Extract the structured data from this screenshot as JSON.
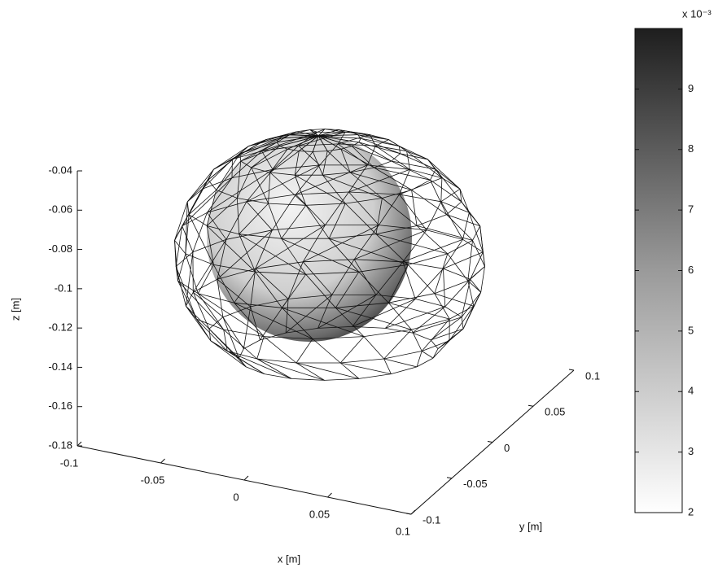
{
  "chart_data": {
    "type": "surface3d",
    "xlabel": "x [m]",
    "ylabel": "y [m]",
    "zlabel": "z [m]",
    "xlim": [
      -0.1,
      0.1
    ],
    "xticks": [
      -0.1,
      -0.05,
      0,
      0.05,
      0.1
    ],
    "ylim": [
      -0.1,
      0.1
    ],
    "yticks": [
      -0.1,
      -0.05,
      0,
      0.05,
      0.1
    ],
    "zlim": [
      -0.18,
      -0.04
    ],
    "zticks": [
      -0.18,
      -0.16,
      -0.14,
      -0.12,
      -0.1,
      -0.08,
      -0.06,
      -0.04
    ],
    "colorbar": {
      "label": "x 10⁻³",
      "lim": [
        2,
        10
      ],
      "ticks": [
        2,
        3,
        4,
        5,
        6,
        7,
        8,
        9
      ]
    }
  }
}
